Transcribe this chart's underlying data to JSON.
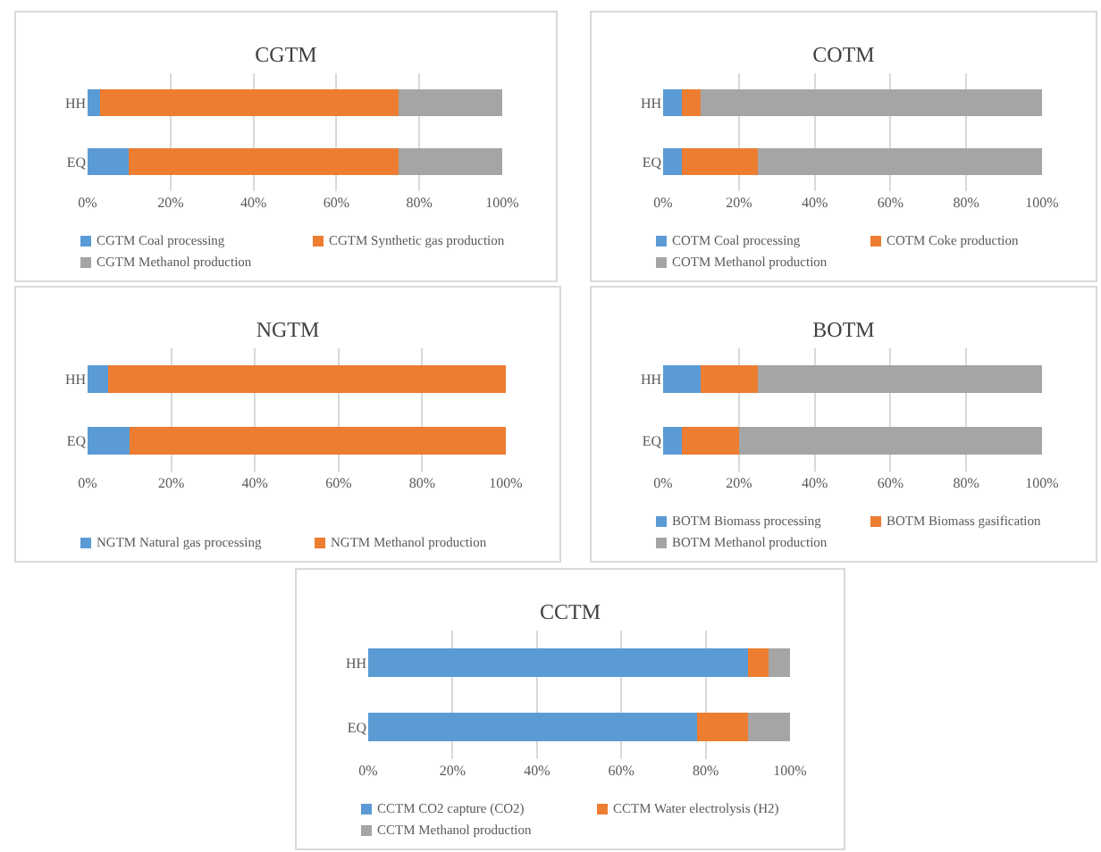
{
  "chart_data": [
    {
      "type": "bar",
      "title": "CGTM",
      "categories": [
        "HH",
        "EQ"
      ],
      "orientation": "horizontal",
      "stacked": true,
      "xlim": [
        0,
        100
      ],
      "xticks": [
        {
          "value": 0,
          "label": "0%"
        },
        {
          "value": 20,
          "label": "20%"
        },
        {
          "value": 40,
          "label": "40%"
        },
        {
          "value": 60,
          "label": "60%"
        },
        {
          "value": 80,
          "label": "80%"
        },
        {
          "value": 100,
          "label": "100%"
        }
      ],
      "grid": "x",
      "legend": "bottom",
      "series": [
        {
          "name": "CGTM Coal processing",
          "color": "#5b9bd5",
          "values": [
            3,
            10
          ]
        },
        {
          "name": "CGTM Synthetic gas production",
          "color": "#ed7d31",
          "values": [
            72,
            65
          ]
        },
        {
          "name": "CGTM Methanol production",
          "color": "#a5a5a5",
          "values": [
            25,
            25
          ]
        }
      ]
    },
    {
      "type": "bar",
      "title": "COTM",
      "categories": [
        "HH",
        "EQ"
      ],
      "orientation": "horizontal",
      "stacked": true,
      "xlim": [
        0,
        100
      ],
      "xticks": [
        {
          "value": 0,
          "label": "0%"
        },
        {
          "value": 20,
          "label": "20%"
        },
        {
          "value": 40,
          "label": "40%"
        },
        {
          "value": 60,
          "label": "60%"
        },
        {
          "value": 80,
          "label": "80%"
        },
        {
          "value": 100,
          "label": "100%"
        }
      ],
      "grid": "x",
      "legend": "bottom",
      "series": [
        {
          "name": "COTM Coal processing",
          "color": "#5b9bd5",
          "values": [
            5,
            5
          ]
        },
        {
          "name": "COTM Coke production",
          "color": "#ed7d31",
          "values": [
            5,
            20
          ]
        },
        {
          "name": "COTM Methanol production",
          "color": "#a5a5a5",
          "values": [
            90,
            75
          ]
        }
      ]
    },
    {
      "type": "bar",
      "title": "NGTM",
      "categories": [
        "HH",
        "EQ"
      ],
      "orientation": "horizontal",
      "stacked": true,
      "xlim": [
        0,
        100
      ],
      "xticks": [
        {
          "value": 0,
          "label": "0%"
        },
        {
          "value": 20,
          "label": "20%"
        },
        {
          "value": 40,
          "label": "40%"
        },
        {
          "value": 60,
          "label": "60%"
        },
        {
          "value": 80,
          "label": "80%"
        },
        {
          "value": 100,
          "label": "100%"
        }
      ],
      "grid": "x",
      "legend": "bottom",
      "series": [
        {
          "name": "NGTM Natural gas processing",
          "color": "#5b9bd5",
          "values": [
            5,
            10
          ]
        },
        {
          "name": "NGTM Methanol production",
          "color": "#ed7d31",
          "values": [
            95,
            90
          ]
        }
      ]
    },
    {
      "type": "bar",
      "title": "BOTM",
      "categories": [
        "HH",
        "EQ"
      ],
      "orientation": "horizontal",
      "stacked": true,
      "xlim": [
        0,
        100
      ],
      "xticks": [
        {
          "value": 0,
          "label": "0%"
        },
        {
          "value": 20,
          "label": "20%"
        },
        {
          "value": 40,
          "label": "40%"
        },
        {
          "value": 60,
          "label": "60%"
        },
        {
          "value": 80,
          "label": "80%"
        },
        {
          "value": 100,
          "label": "100%"
        }
      ],
      "grid": "x",
      "legend": "bottom",
      "series": [
        {
          "name": "BOTM Biomass processing",
          "color": "#5b9bd5",
          "values": [
            10,
            5
          ]
        },
        {
          "name": "BOTM Biomass gasification",
          "color": "#ed7d31",
          "values": [
            15,
            15
          ]
        },
        {
          "name": "BOTM Methanol production",
          "color": "#a5a5a5",
          "values": [
            75,
            80
          ]
        }
      ]
    },
    {
      "type": "bar",
      "title": "CCTM",
      "categories": [
        "HH",
        "EQ"
      ],
      "orientation": "horizontal",
      "stacked": true,
      "xlim": [
        0,
        100
      ],
      "xticks": [
        {
          "value": 0,
          "label": "0%"
        },
        {
          "value": 20,
          "label": "20%"
        },
        {
          "value": 40,
          "label": "40%"
        },
        {
          "value": 60,
          "label": "60%"
        },
        {
          "value": 80,
          "label": "80%"
        },
        {
          "value": 100,
          "label": "100%"
        }
      ],
      "grid": "x",
      "legend": "bottom",
      "series": [
        {
          "name": "CCTM CO2 capture (CO2)",
          "color": "#5b9bd5",
          "values": [
            90,
            78
          ]
        },
        {
          "name": "CCTM Water electrolysis (H2)",
          "color": "#ed7d31",
          "values": [
            5,
            12
          ]
        },
        {
          "name": "CCTM Methanol production",
          "color": "#a5a5a5",
          "values": [
            5,
            10
          ]
        }
      ]
    }
  ]
}
